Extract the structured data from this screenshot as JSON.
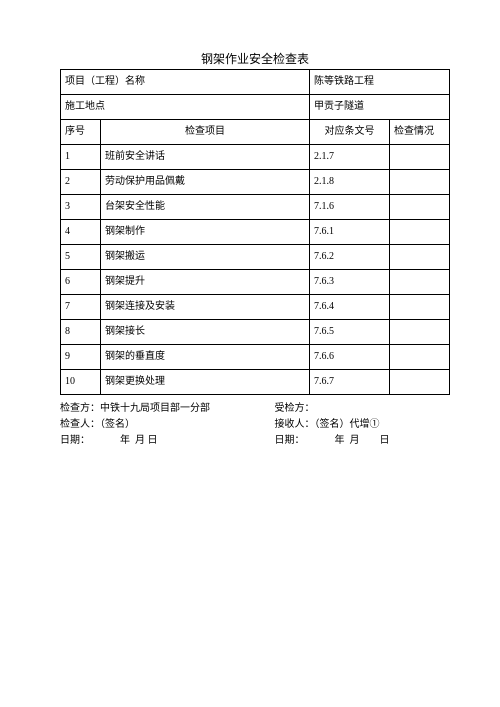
{
  "title": "钢架作业安全检查表",
  "header": {
    "project_label": "项目（工程）名称",
    "project_value": "陈等铁路工程",
    "location_label": "施工地点",
    "location_value": "甲贡子隧道"
  },
  "columns": {
    "seq": "序号",
    "item": "检查项目",
    "ref": "对应条文号",
    "chk": "检查情况"
  },
  "rows": [
    {
      "seq": "1",
      "item": "班前安全讲话",
      "ref": "2.1.7",
      "chk": ""
    },
    {
      "seq": "2",
      "item": "劳动保护用品佩戴",
      "ref": "2.1.8",
      "chk": ""
    },
    {
      "seq": "3",
      "item": "台架安全性能",
      "ref": "7.1.6",
      "chk": ""
    },
    {
      "seq": "4",
      "item": "钢架制作",
      "ref": "7.6.1",
      "chk": ""
    },
    {
      "seq": "5",
      "item": "钢架搬运",
      "ref": "7.6.2",
      "chk": ""
    },
    {
      "seq": "6",
      "item": "钢架提升",
      "ref": "7.6.3",
      "chk": ""
    },
    {
      "seq": "7",
      "item": "钢架连接及安装",
      "ref": "7.6.4",
      "chk": ""
    },
    {
      "seq": "8",
      "item": "钢架接长",
      "ref": "7.6.5",
      "chk": ""
    },
    {
      "seq": "9",
      "item": "钢架的垂直度",
      "ref": "7.6.6",
      "chk": ""
    },
    {
      "seq": "10",
      "item": "钢架更换处理",
      "ref": "7.6.7",
      "chk": ""
    }
  ],
  "footer": {
    "check_party": "检查方：中铁十九局项目部一分部",
    "recv_party": "受检方：",
    "checker": "检查人：（签名）",
    "receiver": "接收人：（签名）代增①",
    "date_left": "日期：   年 月 日",
    "date_right": "日期：   年 月  日"
  }
}
